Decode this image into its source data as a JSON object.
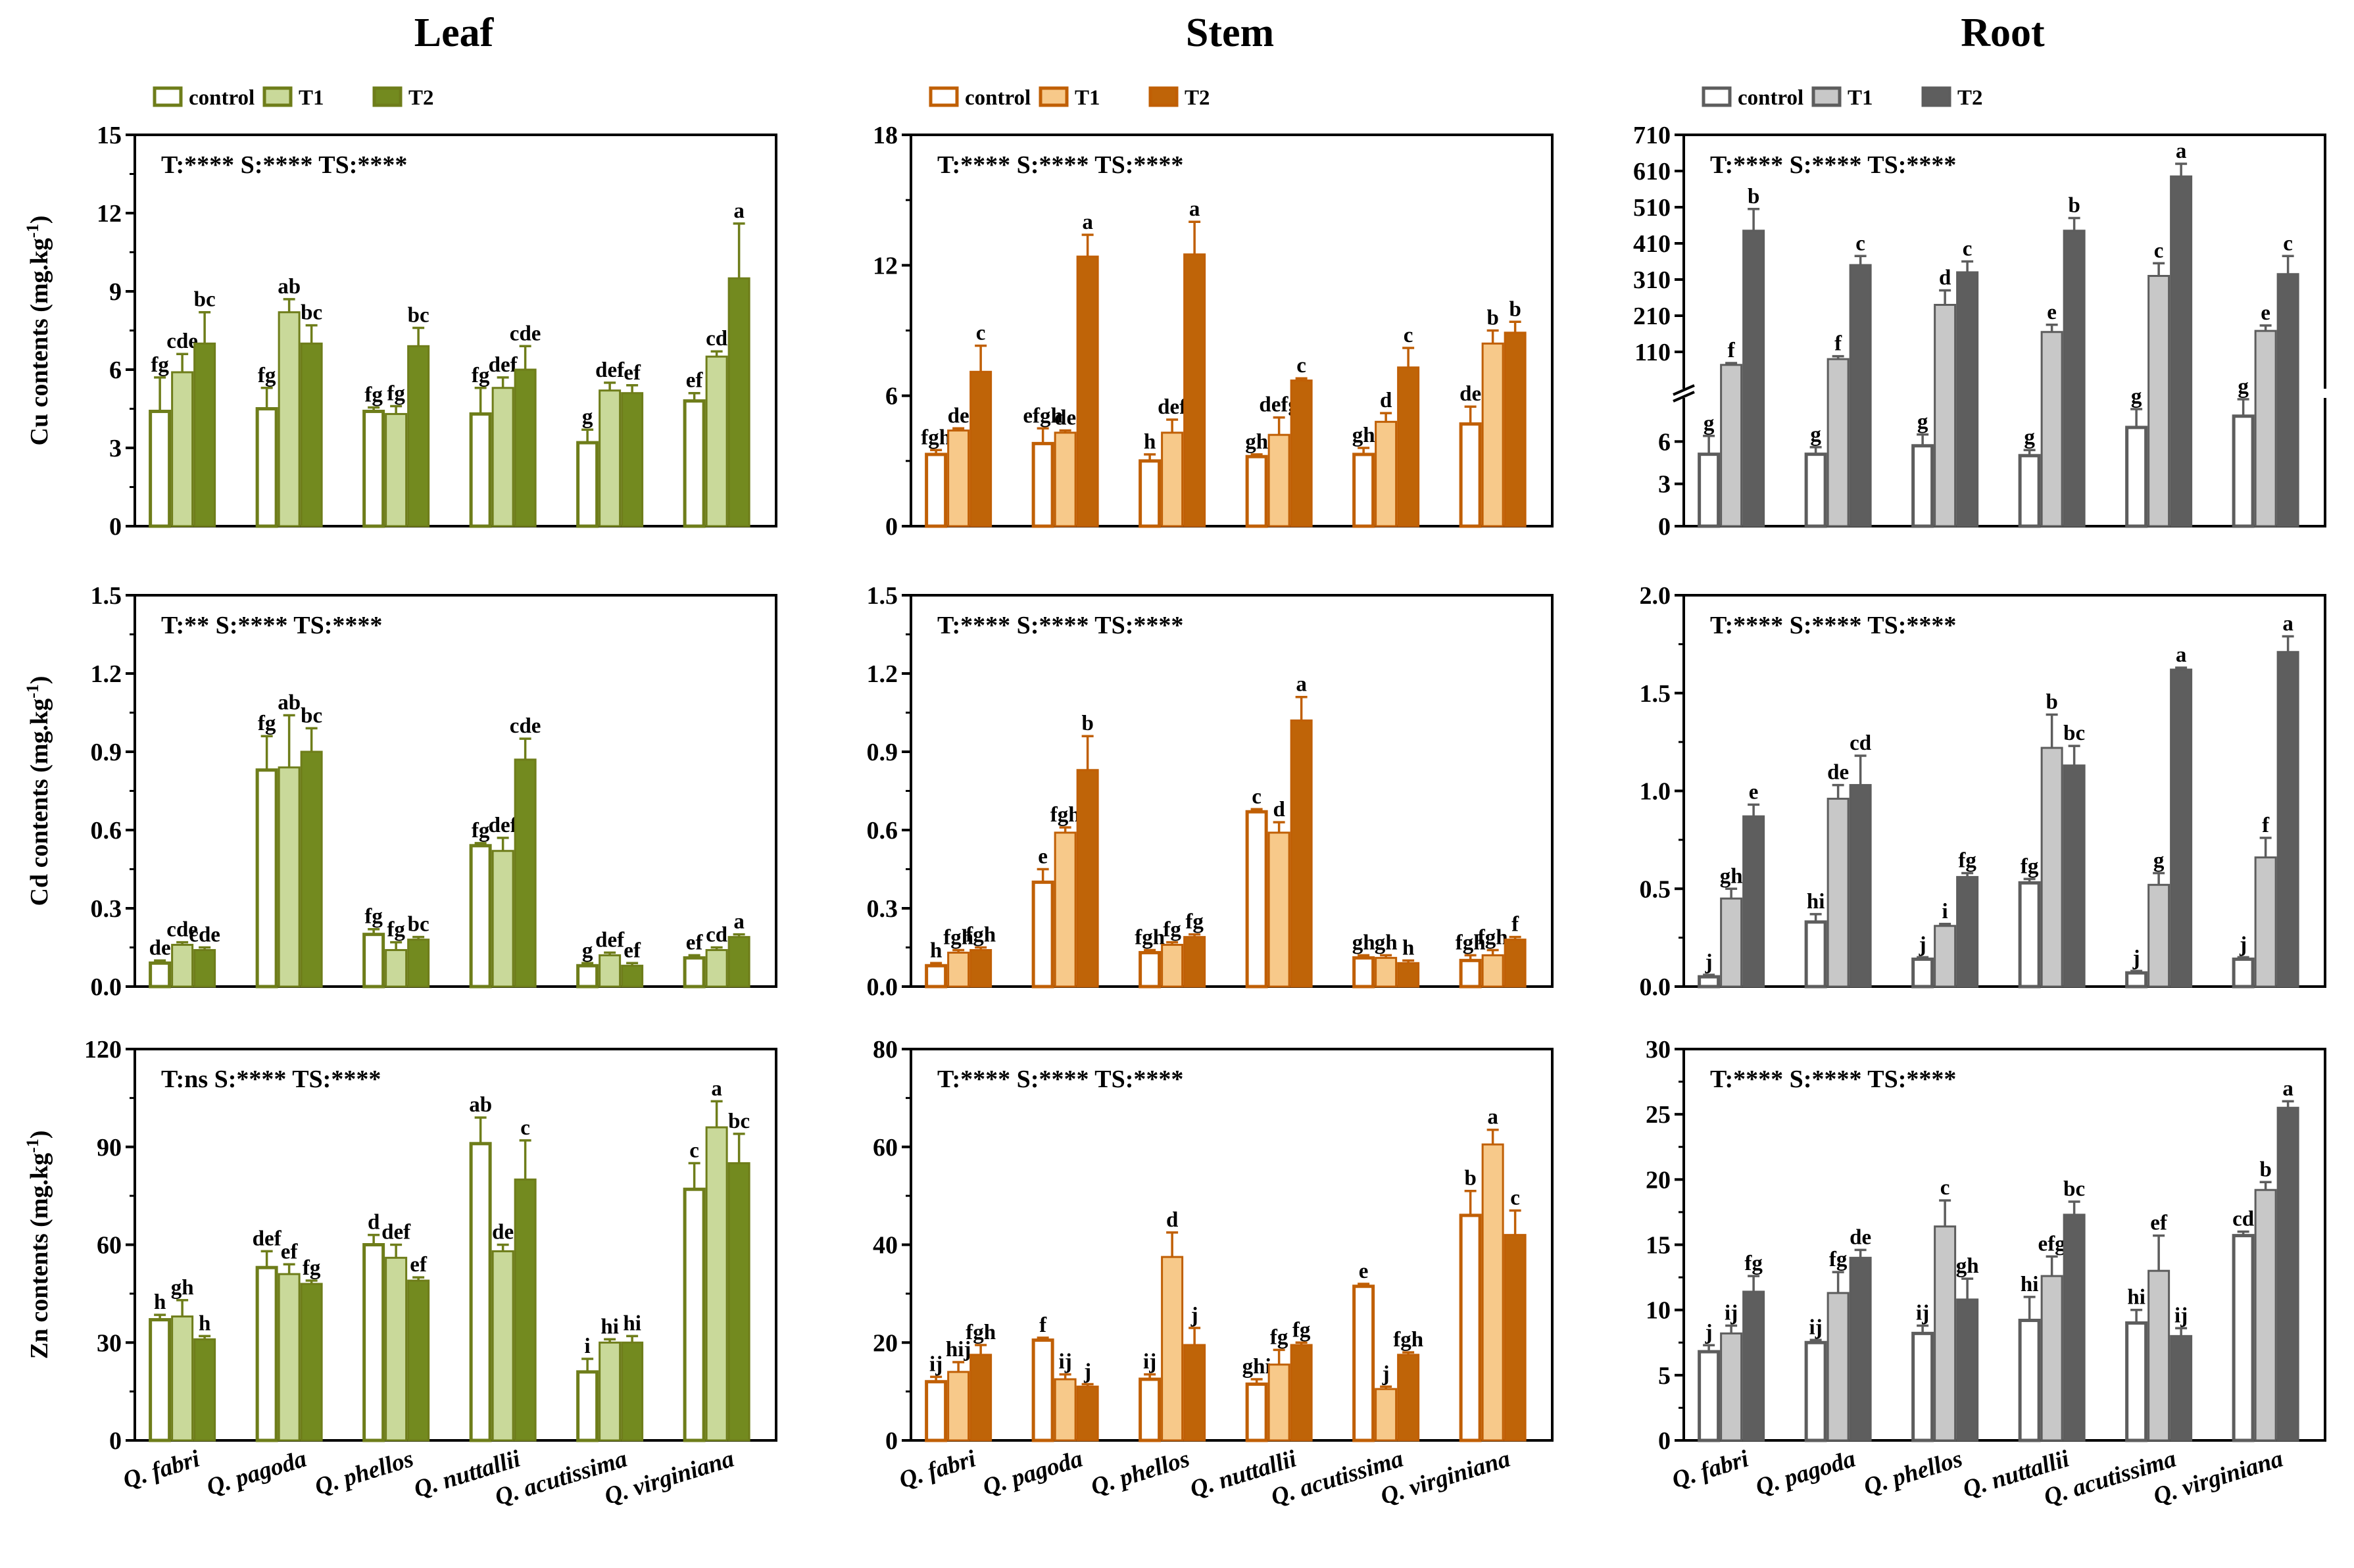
{
  "figure": {
    "columns": [
      {
        "title": "Leaf",
        "legend": [
          "control",
          "T1",
          "T2"
        ],
        "colors": {
          "stroke": "#6e7d1a",
          "control": "#ffffff",
          "t1": "#c9d99a",
          "t2": "#738a1f"
        }
      },
      {
        "title": "Stem",
        "legend": [
          "control",
          "T1",
          "T2"
        ],
        "colors": {
          "stroke": "#c05f05",
          "control": "#ffffff",
          "t1": "#f7c98a",
          "t2": "#bf6408"
        }
      },
      {
        "title": "Root",
        "legend": [
          "control",
          "T1",
          "T2"
        ],
        "colors": {
          "stroke": "#5d5d5d",
          "control": "#ffffff",
          "t1": "#c8c8c8",
          "t2": "#5e5e5e"
        }
      }
    ],
    "row_ylabels": [
      "Cu contents (mg.kg",
      "Cd contents (mg.kg",
      "Zn contents (mg.kg"
    ],
    "ylabel_sup": "-1"
  },
  "chart_data": [
    {
      "id": "leaf-cu",
      "type": "bar",
      "title": "Leaf",
      "ylabel": "Cu contents (mg.kg-1)",
      "stats": "T:****  S:****  TS:****",
      "categories": [
        "Q. fabri",
        "Q. pagoda",
        "Q. phellos",
        "Q. nuttallii",
        "Q. acutissima",
        "Q. virginiana"
      ],
      "ylim": [
        0,
        15
      ],
      "yticks": [
        "0",
        "3",
        "6",
        "9",
        "12",
        "15"
      ],
      "series": [
        {
          "name": "control",
          "values": [
            4.4,
            4.5,
            4.4,
            4.3,
            3.2,
            4.8
          ],
          "errors": [
            1.3,
            0.8,
            0.15,
            1.0,
            0.5,
            0.3
          ],
          "labels": [
            "fg",
            "fg",
            "fg",
            "fg",
            "g",
            "ef"
          ]
        },
        {
          "name": "T1",
          "values": [
            5.9,
            8.2,
            4.3,
            5.3,
            5.2,
            6.5
          ],
          "errors": [
            0.7,
            0.5,
            0.3,
            0.4,
            0.3,
            0.2
          ],
          "labels": [
            "cde",
            "ab",
            "fg",
            "def",
            "def",
            "cd"
          ]
        },
        {
          "name": "T2",
          "values": [
            7.0,
            7.0,
            6.9,
            6.0,
            5.1,
            9.5
          ],
          "errors": [
            1.2,
            0.7,
            0.7,
            0.9,
            0.3,
            2.1
          ],
          "labels": [
            "bc",
            "bc",
            "bc",
            "cde",
            "ef",
            "a"
          ]
        }
      ]
    },
    {
      "id": "stem-cu",
      "type": "bar",
      "title": "Stem",
      "ylabel": "Cu contents (mg.kg-1)",
      "stats": "T:****  S:****  TS:****",
      "categories": [
        "Q. fabri",
        "Q. pagoda",
        "Q. phellos",
        "Q. nuttallii",
        "Q. acutissima",
        "Q. virginiana"
      ],
      "ylim": [
        0,
        18
      ],
      "yticks": [
        "0",
        "6",
        "12",
        "18"
      ],
      "series": [
        {
          "name": "control",
          "values": [
            3.3,
            3.8,
            3.0,
            3.2,
            3.3,
            4.7
          ],
          "errors": [
            0.2,
            0.7,
            0.3,
            0.1,
            0.3,
            0.8
          ],
          "labels": [
            "fgh",
            "efgh",
            "h",
            "gh",
            "gh",
            "de"
          ]
        },
        {
          "name": "T1",
          "values": [
            4.4,
            4.3,
            4.3,
            4.2,
            4.8,
            8.4
          ],
          "errors": [
            0.1,
            0.1,
            0.6,
            0.8,
            0.4,
            0.6
          ],
          "labels": [
            "de",
            "de",
            "def",
            "defg",
            "d",
            "b"
          ]
        },
        {
          "name": "T2",
          "values": [
            7.1,
            12.4,
            12.5,
            6.7,
            7.3,
            8.9
          ],
          "errors": [
            1.2,
            1.0,
            1.5,
            0.1,
            0.9,
            0.5
          ],
          "labels": [
            "c",
            "a",
            "a",
            "c",
            "c",
            "b"
          ]
        }
      ]
    },
    {
      "id": "root-cu",
      "type": "bar",
      "title": "Root",
      "ylabel": "Cu contents (mg.kg-1)",
      "stats": "T:****  S:****  TS:****",
      "categories": [
        "Q. fabri",
        "Q. pagoda",
        "Q. phellos",
        "Q. nuttallii",
        "Q. acutissima",
        "Q. virginiana"
      ],
      "broken_axis": {
        "lower_range": [
          0,
          9
        ],
        "upper_range": [
          10,
          710
        ]
      },
      "yticks": [
        "0",
        "3",
        "6",
        "110",
        "210",
        "310",
        "410",
        "510",
        "610",
        "710"
      ],
      "series": [
        {
          "name": "control",
          "values": [
            5.1,
            5.1,
            5.7,
            5.0,
            7.0,
            7.8
          ],
          "errors": [
            1.3,
            0.5,
            0.8,
            0.4,
            1.3,
            1.2
          ],
          "labels": [
            "g",
            "g",
            "g",
            "g",
            "g",
            "g"
          ]
        },
        {
          "name": "T1",
          "values": [
            74,
            90,
            240,
            165,
            320,
            168
          ],
          "errors": [
            5,
            8,
            40,
            20,
            35,
            15
          ],
          "labels": [
            "f",
            "f",
            "d",
            "e",
            "c",
            "e"
          ]
        },
        {
          "name": "T2",
          "values": [
            445,
            350,
            330,
            445,
            595,
            325
          ],
          "errors": [
            60,
            25,
            30,
            35,
            35,
            50
          ],
          "labels": [
            "b",
            "c",
            "c",
            "b",
            "a",
            "c"
          ]
        }
      ]
    },
    {
      "id": "leaf-cd",
      "type": "bar",
      "title": "Leaf",
      "ylabel": "Cd contents (mg.kg-1)",
      "stats": "T:**  S:****  TS:****",
      "categories": [
        "Q. fabri",
        "Q. pagoda",
        "Q. phellos",
        "Q. nuttallii",
        "Q. acutissima",
        "Q. virginiana"
      ],
      "ylim": [
        0,
        1.5
      ],
      "yticks": [
        "0.0",
        "0.3",
        "0.6",
        "0.9",
        "1.2",
        "1.5"
      ],
      "series": [
        {
          "name": "control",
          "values": [
            0.09,
            0.83,
            0.2,
            0.54,
            0.08,
            0.11
          ],
          "errors": [
            0.01,
            0.13,
            0.02,
            0.01,
            0.01,
            0.01
          ],
          "labels": [
            "de",
            "fg",
            "fg",
            "fg",
            "g",
            "ef"
          ]
        },
        {
          "name": "T1",
          "values": [
            0.16,
            0.84,
            0.14,
            0.52,
            0.12,
            0.14
          ],
          "errors": [
            0.01,
            0.2,
            0.03,
            0.05,
            0.01,
            0.01
          ],
          "labels": [
            "cde",
            "ab",
            "fg",
            "def",
            "def",
            "cd"
          ]
        },
        {
          "name": "T2",
          "values": [
            0.14,
            0.9,
            0.18,
            0.87,
            0.08,
            0.19
          ],
          "errors": [
            0.01,
            0.09,
            0.01,
            0.08,
            0.01,
            0.01
          ],
          "labels": [
            "cde",
            "bc",
            "bc",
            "cde",
            "ef",
            "a"
          ]
        }
      ]
    },
    {
      "id": "stem-cd",
      "type": "bar",
      "title": "Stem",
      "ylabel": "Cd contents (mg.kg-1)",
      "stats": "T:****  S:****  TS:****",
      "categories": [
        "Q. fabri",
        "Q. pagoda",
        "Q. phellos",
        "Q. nuttallii",
        "Q. acutissima",
        "Q. virginiana"
      ],
      "ylim": [
        0,
        1.5
      ],
      "yticks": [
        "0.0",
        "0.3",
        "0.6",
        "0.9",
        "1.2",
        "1.5"
      ],
      "series": [
        {
          "name": "control",
          "values": [
            0.08,
            0.4,
            0.13,
            0.67,
            0.11,
            0.1
          ],
          "errors": [
            0.01,
            0.05,
            0.01,
            0.01,
            0.01,
            0.02
          ],
          "labels": [
            "h",
            "e",
            "fgh",
            "c",
            "gh",
            "fgh"
          ]
        },
        {
          "name": "T1",
          "values": [
            0.13,
            0.59,
            0.16,
            0.59,
            0.11,
            0.12
          ],
          "errors": [
            0.01,
            0.02,
            0.01,
            0.04,
            0.01,
            0.02
          ],
          "labels": [
            "fgh",
            "fgh",
            "fg",
            "d",
            "gh",
            "fgh"
          ]
        },
        {
          "name": "T2",
          "values": [
            0.14,
            0.83,
            0.19,
            1.02,
            0.09,
            0.18
          ],
          "errors": [
            0.01,
            0.13,
            0.01,
            0.09,
            0.01,
            0.01
          ],
          "labels": [
            "fgh",
            "b",
            "fg",
            "a",
            "h",
            "f"
          ]
        }
      ]
    },
    {
      "id": "root-cd",
      "type": "bar",
      "title": "Root",
      "ylabel": "Cd contents (mg.kg-1)",
      "stats": "T:****  S:****  TS:****",
      "categories": [
        "Q. fabri",
        "Q. pagoda",
        "Q. phellos",
        "Q. nuttallii",
        "Q. acutissima",
        "Q. virginiana"
      ],
      "ylim": [
        0,
        2.0
      ],
      "yticks": [
        "0.0",
        "0.5",
        "1.0",
        "1.5",
        "2.0"
      ],
      "series": [
        {
          "name": "control",
          "values": [
            0.05,
            0.33,
            0.14,
            0.53,
            0.07,
            0.14
          ],
          "errors": [
            0.01,
            0.04,
            0.01,
            0.02,
            0.01,
            0.01
          ],
          "labels": [
            "j",
            "hi",
            "j",
            "fg",
            "j",
            "j"
          ]
        },
        {
          "name": "T1",
          "values": [
            0.45,
            0.96,
            0.31,
            1.22,
            0.52,
            0.66
          ],
          "errors": [
            0.05,
            0.07,
            0.01,
            0.17,
            0.06,
            0.1
          ],
          "labels": [
            "gh",
            "de",
            "i",
            "b",
            "g",
            "f"
          ]
        },
        {
          "name": "T2",
          "values": [
            0.87,
            1.03,
            0.56,
            1.13,
            1.62,
            1.71
          ],
          "errors": [
            0.06,
            0.15,
            0.02,
            0.1,
            0.01,
            0.08
          ],
          "labels": [
            "e",
            "cd",
            "fg",
            "bc",
            "a",
            "a"
          ]
        }
      ]
    },
    {
      "id": "leaf-zn",
      "type": "bar",
      "title": "Leaf",
      "ylabel": "Zn contents (mg.kg-1)",
      "stats": "T:ns  S:****  TS:****",
      "categories": [
        "Q. fabri",
        "Q. pagoda",
        "Q. phellos",
        "Q. nuttallii",
        "Q. acutissima",
        "Q. virginiana"
      ],
      "ylim": [
        0,
        120
      ],
      "yticks": [
        "0",
        "30",
        "60",
        "90",
        "120"
      ],
      "series": [
        {
          "name": "control",
          "values": [
            37,
            53,
            60,
            91,
            21,
            77
          ],
          "errors": [
            1.5,
            5,
            3,
            8,
            4,
            8
          ],
          "labels": [
            "h",
            "def",
            "d",
            "ab",
            "i",
            "c"
          ]
        },
        {
          "name": "T1",
          "values": [
            38,
            51,
            56,
            58,
            30,
            96
          ],
          "errors": [
            5,
            3,
            4,
            2,
            1,
            8
          ],
          "labels": [
            "gh",
            "ef",
            "def",
            "de",
            "hi",
            "a"
          ]
        },
        {
          "name": "T2",
          "values": [
            31,
            48,
            49,
            80,
            30,
            85
          ],
          "errors": [
            1,
            1,
            1,
            12,
            2,
            9
          ],
          "labels": [
            "h",
            "fg",
            "ef",
            "c",
            "hi",
            "bc"
          ]
        }
      ]
    },
    {
      "id": "stem-zn",
      "type": "bar",
      "title": "Stem",
      "ylabel": "Zn contents (mg.kg-1)",
      "stats": "T:****  S:****  TS:****",
      "categories": [
        "Q. fabri",
        "Q. pagoda",
        "Q. phellos",
        "Q. nuttallii",
        "Q. acutissima",
        "Q. virginiana"
      ],
      "ylim": [
        0,
        80
      ],
      "yticks": [
        "0",
        "20",
        "40",
        "60",
        "80"
      ],
      "series": [
        {
          "name": "control",
          "values": [
            12,
            20.5,
            12.5,
            11.5,
            31.5,
            46
          ],
          "errors": [
            1,
            0.5,
            1,
            1,
            0.5,
            5
          ],
          "labels": [
            "ij",
            "f",
            "ij",
            "ghi",
            "e",
            "b"
          ]
        },
        {
          "name": "T1",
          "values": [
            14,
            12.5,
            37.5,
            15.5,
            10.5,
            60.5
          ],
          "errors": [
            2,
            1,
            5,
            3,
            0.5,
            3
          ],
          "labels": [
            "hij",
            "ij",
            "d",
            "fg",
            "j",
            "a"
          ]
        },
        {
          "name": "T2",
          "values": [
            17.5,
            11,
            19.5,
            19.5,
            17.5,
            42
          ],
          "errors": [
            2,
            0.5,
            3.5,
            0.5,
            0.5,
            5
          ],
          "labels": [
            "fgh",
            "j",
            "j",
            "fg",
            "fgh",
            "c"
          ]
        }
      ]
    },
    {
      "id": "root-zn",
      "type": "bar",
      "title": "Root",
      "ylabel": "Zn contents (mg.kg-1)",
      "stats": "T:****  S:****  TS:****",
      "categories": [
        "Q. fabri",
        "Q. pagoda",
        "Q. phellos",
        "Q. nuttallii",
        "Q. acutissima",
        "Q. virginiana"
      ],
      "ylim": [
        0,
        30
      ],
      "yticks": [
        "0",
        "5",
        "10",
        "15",
        "20",
        "25",
        "30"
      ],
      "series": [
        {
          "name": "control",
          "values": [
            6.8,
            7.5,
            8.2,
            9.2,
            9.0,
            15.7
          ],
          "errors": [
            0.5,
            0.2,
            0.6,
            1.8,
            1.0,
            0.3
          ],
          "labels": [
            "j",
            "ij",
            "ij",
            "hi",
            "hi",
            "cd"
          ]
        },
        {
          "name": "T1",
          "values": [
            8.2,
            11.3,
            16.4,
            12.6,
            13.0,
            19.2
          ],
          "errors": [
            0.6,
            1.6,
            2.0,
            1.5,
            2.7,
            0.6
          ],
          "labels": [
            "ij",
            "fg",
            "c",
            "efg",
            "ef",
            "b"
          ]
        },
        {
          "name": "T2",
          "values": [
            11.4,
            14.0,
            10.8,
            17.3,
            8.0,
            25.5
          ],
          "errors": [
            1.2,
            0.6,
            1.6,
            1.0,
            0.6,
            0.5
          ],
          "labels": [
            "fg",
            "de",
            "gh",
            "bc",
            "ij",
            "a"
          ]
        }
      ]
    }
  ]
}
